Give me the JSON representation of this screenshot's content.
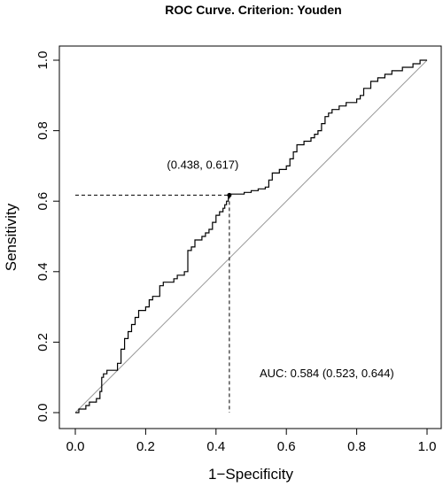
{
  "chart_data": {
    "type": "line",
    "title": "ROC Curve. Criterion: Youden",
    "xlabel": "1−Specificity",
    "ylabel": "Sensitivity",
    "xlim": [
      0.0,
      1.0
    ],
    "ylim": [
      0.0,
      1.0
    ],
    "x_ticks": [
      0.0,
      0.2,
      0.4,
      0.6,
      0.8,
      1.0
    ],
    "y_ticks": [
      0.0,
      0.2,
      0.4,
      0.6,
      0.8,
      1.0
    ],
    "x_tick_labels": [
      "0.0",
      "0.2",
      "0.4",
      "0.6",
      "0.8",
      "1.0"
    ],
    "y_tick_labels": [
      "0.0",
      "0.2",
      "0.4",
      "0.6",
      "0.8",
      "1.0"
    ],
    "grid": false,
    "legend": "none",
    "series": [
      {
        "style": "step",
        "color": "#000000",
        "points": [
          [
            0.0,
            0.0
          ],
          [
            0.01,
            0.0
          ],
          [
            0.01,
            0.01
          ],
          [
            0.03,
            0.01
          ],
          [
            0.03,
            0.02
          ],
          [
            0.04,
            0.02
          ],
          [
            0.04,
            0.03
          ],
          [
            0.06,
            0.03
          ],
          [
            0.06,
            0.04
          ],
          [
            0.07,
            0.04
          ],
          [
            0.07,
            0.06
          ],
          [
            0.075,
            0.06
          ],
          [
            0.075,
            0.1
          ],
          [
            0.08,
            0.1
          ],
          [
            0.08,
            0.11
          ],
          [
            0.09,
            0.11
          ],
          [
            0.09,
            0.12
          ],
          [
            0.12,
            0.12
          ],
          [
            0.12,
            0.14
          ],
          [
            0.13,
            0.14
          ],
          [
            0.13,
            0.18
          ],
          [
            0.14,
            0.18
          ],
          [
            0.14,
            0.21
          ],
          [
            0.15,
            0.21
          ],
          [
            0.15,
            0.23
          ],
          [
            0.16,
            0.23
          ],
          [
            0.16,
            0.25
          ],
          [
            0.17,
            0.25
          ],
          [
            0.17,
            0.27
          ],
          [
            0.18,
            0.27
          ],
          [
            0.18,
            0.29
          ],
          [
            0.2,
            0.29
          ],
          [
            0.2,
            0.3
          ],
          [
            0.21,
            0.3
          ],
          [
            0.21,
            0.32
          ],
          [
            0.22,
            0.32
          ],
          [
            0.22,
            0.33
          ],
          [
            0.24,
            0.33
          ],
          [
            0.24,
            0.36
          ],
          [
            0.25,
            0.36
          ],
          [
            0.25,
            0.37
          ],
          [
            0.28,
            0.37
          ],
          [
            0.28,
            0.38
          ],
          [
            0.29,
            0.38
          ],
          [
            0.29,
            0.39
          ],
          [
            0.31,
            0.39
          ],
          [
            0.31,
            0.4
          ],
          [
            0.32,
            0.4
          ],
          [
            0.32,
            0.46
          ],
          [
            0.33,
            0.46
          ],
          [
            0.33,
            0.47
          ],
          [
            0.34,
            0.47
          ],
          [
            0.34,
            0.49
          ],
          [
            0.36,
            0.49
          ],
          [
            0.36,
            0.5
          ],
          [
            0.37,
            0.5
          ],
          [
            0.37,
            0.51
          ],
          [
            0.38,
            0.51
          ],
          [
            0.38,
            0.52
          ],
          [
            0.39,
            0.52
          ],
          [
            0.39,
            0.54
          ],
          [
            0.4,
            0.54
          ],
          [
            0.4,
            0.56
          ],
          [
            0.41,
            0.56
          ],
          [
            0.41,
            0.57
          ],
          [
            0.42,
            0.57
          ],
          [
            0.42,
            0.58
          ],
          [
            0.425,
            0.58
          ],
          [
            0.425,
            0.59
          ],
          [
            0.43,
            0.59
          ],
          [
            0.43,
            0.6
          ],
          [
            0.435,
            0.6
          ],
          [
            0.435,
            0.61
          ],
          [
            0.438,
            0.61
          ],
          [
            0.438,
            0.617
          ],
          [
            0.44,
            0.617
          ],
          [
            0.44,
            0.62
          ],
          [
            0.48,
            0.62
          ],
          [
            0.48,
            0.625
          ],
          [
            0.5,
            0.625
          ],
          [
            0.5,
            0.63
          ],
          [
            0.52,
            0.63
          ],
          [
            0.52,
            0.635
          ],
          [
            0.54,
            0.635
          ],
          [
            0.54,
            0.64
          ],
          [
            0.55,
            0.64
          ],
          [
            0.55,
            0.66
          ],
          [
            0.56,
            0.66
          ],
          [
            0.56,
            0.68
          ],
          [
            0.58,
            0.68
          ],
          [
            0.58,
            0.69
          ],
          [
            0.6,
            0.69
          ],
          [
            0.6,
            0.7
          ],
          [
            0.61,
            0.7
          ],
          [
            0.61,
            0.72
          ],
          [
            0.62,
            0.72
          ],
          [
            0.62,
            0.74
          ],
          [
            0.63,
            0.74
          ],
          [
            0.63,
            0.76
          ],
          [
            0.65,
            0.76
          ],
          [
            0.65,
            0.77
          ],
          [
            0.67,
            0.77
          ],
          [
            0.67,
            0.78
          ],
          [
            0.68,
            0.78
          ],
          [
            0.68,
            0.79
          ],
          [
            0.69,
            0.79
          ],
          [
            0.69,
            0.8
          ],
          [
            0.7,
            0.8
          ],
          [
            0.7,
            0.82
          ],
          [
            0.71,
            0.82
          ],
          [
            0.71,
            0.84
          ],
          [
            0.72,
            0.84
          ],
          [
            0.72,
            0.85
          ],
          [
            0.73,
            0.85
          ],
          [
            0.73,
            0.86
          ],
          [
            0.75,
            0.86
          ],
          [
            0.75,
            0.87
          ],
          [
            0.77,
            0.87
          ],
          [
            0.77,
            0.88
          ],
          [
            0.8,
            0.88
          ],
          [
            0.8,
            0.89
          ],
          [
            0.81,
            0.89
          ],
          [
            0.81,
            0.9
          ],
          [
            0.82,
            0.9
          ],
          [
            0.82,
            0.92
          ],
          [
            0.84,
            0.92
          ],
          [
            0.84,
            0.94
          ],
          [
            0.86,
            0.94
          ],
          [
            0.86,
            0.95
          ],
          [
            0.88,
            0.95
          ],
          [
            0.88,
            0.96
          ],
          [
            0.9,
            0.96
          ],
          [
            0.9,
            0.97
          ],
          [
            0.93,
            0.97
          ],
          [
            0.93,
            0.98
          ],
          [
            0.96,
            0.98
          ],
          [
            0.96,
            0.99
          ],
          [
            0.98,
            0.99
          ],
          [
            0.98,
            1.0
          ],
          [
            1.0,
            1.0
          ]
        ]
      }
    ],
    "reference_line": {
      "from": [
        0.0,
        0.0
      ],
      "to": [
        1.0,
        1.0
      ],
      "color": "#999999"
    },
    "optimal_point": {
      "x": 0.438,
      "y": 0.617,
      "label": "(0.438, 0.617)"
    },
    "auc_annotation": "AUC: 0.584 (0.523, 0.644)"
  }
}
